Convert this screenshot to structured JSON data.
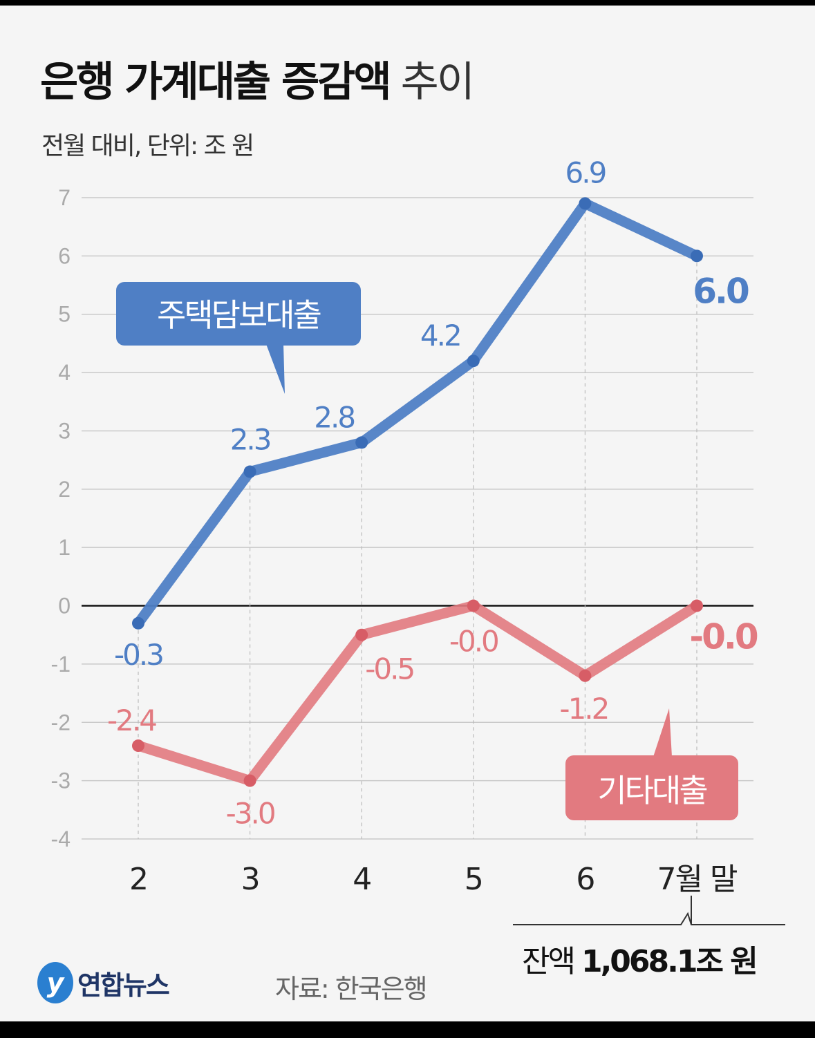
{
  "title_bold": "은행 가계대출 증감액",
  "title_light": "추이",
  "subtitle": "전월 대비, 단위: 조 원",
  "source": "자료: 한국은행",
  "logo": "연합뉴스",
  "balance_label": "잔액",
  "balance_value": "1,068.1조 원",
  "chart_data": {
    "type": "line",
    "categories": [
      "2",
      "3",
      "4",
      "5",
      "6",
      "7월 말"
    ],
    "ylim": [
      -4,
      7
    ],
    "yticks": [
      "7",
      "6",
      "5",
      "4",
      "3",
      "2",
      "1",
      "0",
      "-1",
      "-2",
      "-3",
      "-4"
    ],
    "grid": true,
    "series": [
      {
        "name": "주택담보대출",
        "color": "#4f7fc5",
        "values": [
          -0.3,
          2.3,
          2.8,
          4.2,
          6.9,
          6.0
        ],
        "labels": [
          "-0.3",
          "2.3",
          "2.8",
          "4.2",
          "6.9",
          "6.0"
        ]
      },
      {
        "name": "기타대출",
        "color": "#e27a80",
        "values": [
          -2.4,
          -3.0,
          -0.5,
          -0.0,
          -1.2,
          -0.0
        ],
        "labels": [
          "-2.4",
          "-3.0",
          "-0.5",
          "-0.0",
          "-1.2",
          "-0.0"
        ]
      }
    ]
  }
}
